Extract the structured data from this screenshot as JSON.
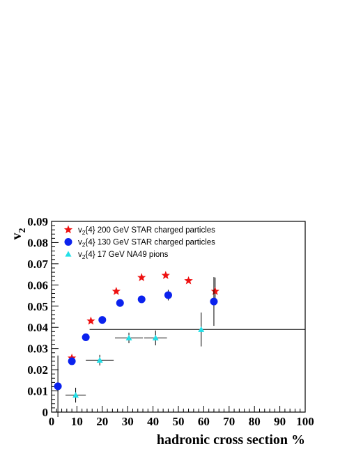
{
  "chart_data": {
    "type": "scatter",
    "xlabel": "hadronic cross section %",
    "ylabel_main": "v",
    "ylabel_sub": "2",
    "xlim": [
      0,
      100
    ],
    "ylim": [
      0,
      0.09
    ],
    "x_ticks": [
      "0",
      "10",
      "20",
      "30",
      "40",
      "50",
      "60",
      "70",
      "80",
      "90",
      "100"
    ],
    "y_ticks": [
      "0",
      "0.01",
      "0.02",
      "0.03",
      "0.04",
      "0.05",
      "0.06",
      "0.07",
      "0.08",
      "0.09"
    ],
    "series": [
      {
        "name": "v2{4} 200 GeV STAR charged particles",
        "legend_pre": "v",
        "legend_sub": "2",
        "legend_post": "{4} 200 GeV STAR charged particles",
        "color": "#ee1111",
        "marker": "star",
        "points": [
          {
            "x": 8,
            "y": 0.0255,
            "ex": 0,
            "ey": 0.0015
          },
          {
            "x": 15.5,
            "y": 0.043,
            "ex": 0,
            "ey": 0.0005
          },
          {
            "x": 25.5,
            "y": 0.057,
            "ex": 0,
            "ey": 0.0005
          },
          {
            "x": 35.5,
            "y": 0.0635,
            "ex": 0,
            "ey": 0.0005
          },
          {
            "x": 45,
            "y": 0.0645,
            "ex": 0,
            "ey": 0.0005
          },
          {
            "x": 54,
            "y": 0.062,
            "ex": 0,
            "ey": 0.0005
          },
          {
            "x": 64.5,
            "y": 0.057,
            "ex": 0,
            "ey": 0.0065
          }
        ]
      },
      {
        "name": "v2{4} 130 GeV STAR charged particles",
        "legend_pre": "v",
        "legend_sub": "2",
        "legend_post": "{4} 130 GeV STAR charged particles",
        "color": "#0b22ee",
        "marker": "circle",
        "points": [
          {
            "x": 2.5,
            "y": 0.0122,
            "ex": 0,
            "ey": 0.0145
          },
          {
            "x": 8,
            "y": 0.024,
            "ex": 0,
            "ey": 0.0015
          },
          {
            "x": 13.5,
            "y": 0.0353,
            "ex": 0,
            "ey": 0.0007
          },
          {
            "x": 20,
            "y": 0.0435,
            "ex": 0,
            "ey": 0.0007
          },
          {
            "x": 27,
            "y": 0.0515,
            "ex": 0,
            "ey": 0.0007
          },
          {
            "x": 35.5,
            "y": 0.0532,
            "ex": 0,
            "ey": 0.0007
          },
          {
            "x": 46,
            "y": 0.0552,
            "ex": 0,
            "ey": 0.0025
          },
          {
            "x": 64,
            "y": 0.0522,
            "ex": 0,
            "ey": 0.0115
          }
        ]
      },
      {
        "name": "v2{4} 17 GeV NA49 pions",
        "legend_pre": "v",
        "legend_sub": "2",
        "legend_post": "{4} 17 GeV NA49 pions",
        "color": "#22e0e8",
        "marker": "triangle",
        "points": [
          {
            "x": 9.5,
            "y": 0.008,
            "ex": 4,
            "ey": 0.0035
          },
          {
            "x": 19,
            "y": 0.0245,
            "ex": 5.5,
            "ey": 0.0025
          },
          {
            "x": 30.5,
            "y": 0.035,
            "ex": 5.5,
            "ey": 0.0025
          },
          {
            "x": 41,
            "y": 0.035,
            "ex": 4.5,
            "ey": 0.0035
          },
          {
            "x": 59,
            "y": 0.039,
            "ex": 44,
            "ey": 0.008
          }
        ]
      }
    ]
  }
}
